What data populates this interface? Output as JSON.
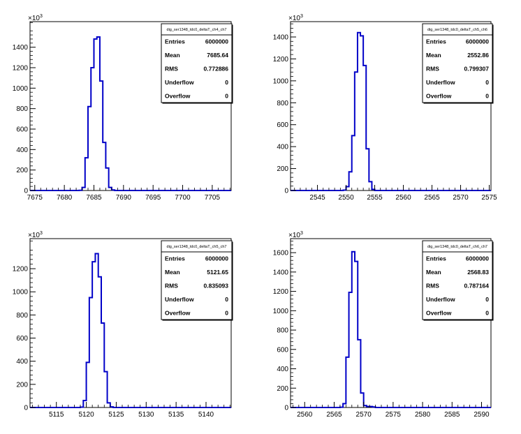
{
  "chart_data": [
    {
      "type": "histogram",
      "stats_title": "dig_ser1348_tdc0_deltaT_ch4_ch7",
      "stats": [
        {
          "label": "Entries",
          "value": "6000000"
        },
        {
          "label": "Mean",
          "value": "7685.64"
        },
        {
          "label": "RMS",
          "value": "0.772886"
        },
        {
          "label": "Underflow",
          "value": "0"
        },
        {
          "label": "Overflow",
          "value": "0"
        }
      ],
      "xlim": [
        7674.2,
        7708.2
      ],
      "xticks": [
        7675,
        7680,
        7685,
        7690,
        7695,
        7700,
        7705
      ],
      "ylim": [
        0,
        1650
      ],
      "yticks": [
        0,
        200,
        400,
        600,
        800,
        1000,
        1200,
        1400
      ],
      "y_multiplier": "10",
      "y_exponent": "3",
      "bin_width": 0.5,
      "bins": [
        [
          7682.5,
          2
        ],
        [
          7683.0,
          30
        ],
        [
          7683.5,
          320
        ],
        [
          7684.0,
          820
        ],
        [
          7684.5,
          1200
        ],
        [
          7685.0,
          1480
        ],
        [
          7685.5,
          1500
        ],
        [
          7686.0,
          1070
        ],
        [
          7686.5,
          470
        ],
        [
          7687.0,
          220
        ],
        [
          7687.5,
          30
        ],
        [
          7688.0,
          5
        ]
      ]
    },
    {
      "type": "histogram",
      "stats_title": "dig_ser1348_tdc0_deltaT_ch5_ch6",
      "stats": [
        {
          "label": "Entries",
          "value": "6000000"
        },
        {
          "label": "Mean",
          "value": "2552.86"
        },
        {
          "label": "RMS",
          "value": "0.799307"
        },
        {
          "label": "Underflow",
          "value": "0"
        },
        {
          "label": "Overflow",
          "value": "0"
        }
      ],
      "xlim": [
        2540.3,
        2575.3
      ],
      "xticks": [
        2545,
        2550,
        2555,
        2560,
        2565,
        2570,
        2575
      ],
      "ylim": [
        0,
        1540
      ],
      "yticks": [
        0,
        200,
        400,
        600,
        800,
        1000,
        1200,
        1400
      ],
      "y_multiplier": "10",
      "y_exponent": "3",
      "bin_width": 0.5,
      "bins": [
        [
          2549.5,
          3
        ],
        [
          2550.0,
          35
        ],
        [
          2550.5,
          170
        ],
        [
          2551.0,
          500
        ],
        [
          2551.5,
          1080
        ],
        [
          2552.0,
          1440
        ],
        [
          2552.5,
          1410
        ],
        [
          2553.0,
          1140
        ],
        [
          2553.5,
          380
        ],
        [
          2554.0,
          80
        ],
        [
          2554.5,
          10
        ]
      ]
    },
    {
      "type": "histogram",
      "stats_title": "dig_ser1348_tdc0_deltaT_ch5_ch7",
      "stats": [
        {
          "label": "Entries",
          "value": "6000000"
        },
        {
          "label": "Mean",
          "value": "5121.65"
        },
        {
          "label": "RMS",
          "value": "0.835093"
        },
        {
          "label": "Underflow",
          "value": "0"
        },
        {
          "label": "Overflow",
          "value": "0"
        }
      ],
      "xlim": [
        5110.6,
        5144.2
      ],
      "xticks": [
        5115,
        5120,
        5125,
        5130,
        5135,
        5140
      ],
      "ylim": [
        0,
        1460
      ],
      "yticks": [
        0,
        200,
        400,
        600,
        800,
        1000,
        1200
      ],
      "y_multiplier": "10",
      "y_exponent": "3",
      "bin_width": 0.5,
      "bins": [
        [
          5119.0,
          3
        ],
        [
          5119.5,
          60
        ],
        [
          5120.0,
          390
        ],
        [
          5120.5,
          950
        ],
        [
          5121.0,
          1260
        ],
        [
          5121.5,
          1330
        ],
        [
          5122.0,
          1130
        ],
        [
          5122.5,
          730
        ],
        [
          5123.0,
          310
        ],
        [
          5123.5,
          40
        ],
        [
          5124.0,
          5
        ]
      ]
    },
    {
      "type": "histogram",
      "stats_title": "dig_ser1348_tdc0_deltaT_ch6_ch7",
      "stats": [
        {
          "label": "Entries",
          "value": "6000000"
        },
        {
          "label": "Mean",
          "value": "2568.83"
        },
        {
          "label": "RMS",
          "value": "0.787164"
        },
        {
          "label": "Underflow",
          "value": "0"
        },
        {
          "label": "Overflow",
          "value": "0"
        }
      ],
      "xlim": [
        2557.6,
        2591.6
      ],
      "xticks": [
        2560,
        2565,
        2570,
        2575,
        2580,
        2585,
        2590
      ],
      "ylim": [
        0,
        1745
      ],
      "yticks": [
        0,
        200,
        400,
        600,
        800,
        1000,
        1200,
        1400,
        1600
      ],
      "y_multiplier": "10",
      "y_exponent": "3",
      "bin_width": 0.5,
      "bins": [
        [
          2566.0,
          3
        ],
        [
          2566.5,
          40
        ],
        [
          2567.0,
          520
        ],
        [
          2567.5,
          1190
        ],
        [
          2568.0,
          1610
        ],
        [
          2568.5,
          1510
        ],
        [
          2569.0,
          700
        ],
        [
          2569.5,
          150
        ],
        [
          2570.0,
          20
        ],
        [
          2570.5,
          10
        ],
        [
          2571.0,
          10
        ],
        [
          2571.5,
          5
        ]
      ]
    }
  ]
}
